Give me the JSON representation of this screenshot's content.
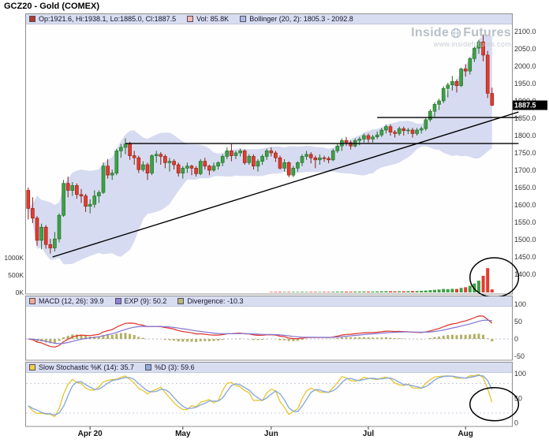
{
  "header": {
    "title": "GCZ20 - Gold (COMEX)"
  },
  "watermark": {
    "brand_left": "Inside",
    "brand_right": "Futures",
    "url": "www.insidefutures.com"
  },
  "legends": {
    "main": [
      {
        "color": "#b03a2e",
        "text": "Op:1921.6, Hi:1938.1, Lo:1885.0, Cl:1887.5"
      },
      {
        "color": "#f5b7ae",
        "text": "Vol: 85.8K"
      },
      {
        "color": "#aeb8e8",
        "text": "Bollinger (20, 2): 1805.3 - 2092.8"
      }
    ],
    "macd": [
      {
        "color": "#f5a898",
        "text": "MACD (12, 26): 39.9"
      },
      {
        "color": "#9080d8",
        "text": "EXP (9): 50.2"
      },
      {
        "color": "#b8b878",
        "text": "Divergence: -10.3"
      }
    ],
    "stoch": [
      {
        "color": "#f0d048",
        "text": "Slow Stochastic %K (14): 35.7"
      },
      {
        "color": "#90acdc",
        "text": "%D (3): 59.6"
      }
    ]
  },
  "colors": {
    "up_candle": "#3fa046",
    "up_border": "#1e6b24",
    "down_candle": "#e23b2e",
    "down_border": "#8e1c12",
    "bollinger_fill": "#cdd2ee",
    "trend_line": "#000000",
    "macd_line": "#e03028",
    "signal_line": "#8274d2",
    "divergence_bar": "#b2b060",
    "stoch_k": "#e8c52f",
    "stoch_d": "#82a5da",
    "legend_bg": "#d9ddf0",
    "panel_bg": "#fefeff",
    "panel_border": "#8f8f8f",
    "price_tag_bg": "#000000",
    "price_tag_text": "#ffffff",
    "annotation": "#000000",
    "axis_text": "#333333"
  },
  "chart_data": {
    "type": "candlestick",
    "symbol": "GCZ20",
    "title": "GCZ20 - Gold (COMEX)",
    "panels": [
      "price+volume",
      "macd",
      "slow-stochastic"
    ],
    "price_axis": {
      "tick_labels": [
        "2100.0",
        "2050.0",
        "2000.0",
        "1950.0",
        "1900.0",
        "1850.0",
        "1800.0",
        "1750.0",
        "1700.0",
        "1650.0",
        "1600.0",
        "1550.0",
        "1500.0",
        "1450.0",
        "1400.0"
      ],
      "last_price": 1887.5,
      "last_price_label": "1887.5"
    },
    "volume_axis": {
      "unit": "K",
      "ticks": [
        {
          "label": "1000K",
          "value": 1000
        },
        {
          "label": "500K",
          "value": 500
        },
        {
          "label": "0K",
          "value": 0
        }
      ]
    },
    "macd_axis": {
      "tick_labels": [
        "100",
        "50",
        "0",
        "-50"
      ]
    },
    "stoch_axis": {
      "tick_labels": [
        "100",
        "50",
        "0"
      ]
    },
    "x_axis": {
      "ticks": [
        {
          "label": "Apr 20",
          "bar": 14
        },
        {
          "label": "May",
          "bar": 35
        },
        {
          "label": "Jun",
          "bar": 55
        },
        {
          "label": "Jul",
          "bar": 77
        },
        {
          "label": "Aug",
          "bar": 99
        }
      ]
    },
    "indicators": {
      "bollinger": {
        "period": 20,
        "stdev": 2,
        "range_label": "1805.3 - 2092.8"
      },
      "macd": {
        "fast": 12,
        "slow": 26,
        "signal": 9,
        "value": 39.9,
        "signal_value": 50.2,
        "divergence": -10.3
      },
      "slow_stochastic": {
        "k_period": 14,
        "d_period": 3,
        "k_value": 35.7,
        "d_value": 59.6
      },
      "current_volume_label": "85.8K"
    },
    "trend_lines": [
      {
        "from_bar": 5.5,
        "from_price": 1450,
        "to_bar": 111,
        "to_price": 1868
      },
      {
        "from_bar": 22,
        "from_price": 1777,
        "to_bar": 111,
        "to_price": 1777
      },
      {
        "from_bar": 79,
        "from_price": 1852,
        "to_bar": 111,
        "to_price": 1852
      }
    ],
    "annotations": [
      {
        "shape": "ellipse",
        "panel": "volume",
        "center_bar": 105.5,
        "rx_bars": 5.5,
        "note": "volume spike circled"
      },
      {
        "shape": "ellipse",
        "panel": "stoch",
        "center_bar": 105.5,
        "center_value": 38,
        "rx_bars": 5.5,
        "note": "stochastic breakdown circled"
      }
    ],
    "ohlcv_format": [
      "open",
      "high",
      "low",
      "close",
      "volume_thousands"
    ],
    "ohlcv": [
      [
        1642,
        1650,
        1558,
        1590,
        3
      ],
      [
        1590,
        1622,
        1548,
        1562,
        3
      ],
      [
        1562,
        1568,
        1482,
        1498,
        4
      ],
      [
        1498,
        1546,
        1472,
        1536,
        4
      ],
      [
        1536,
        1542,
        1474,
        1486,
        4
      ],
      [
        1486,
        1502,
        1460,
        1476,
        5
      ],
      [
        1476,
        1522,
        1466,
        1502,
        4
      ],
      [
        1502,
        1576,
        1492,
        1570,
        4
      ],
      [
        1570,
        1672,
        1566,
        1662,
        5
      ],
      [
        1662,
        1682,
        1622,
        1642,
        4
      ],
      [
        1642,
        1666,
        1626,
        1656,
        3
      ],
      [
        1656,
        1662,
        1618,
        1630,
        3
      ],
      [
        1630,
        1646,
        1606,
        1626,
        3
      ],
      [
        1626,
        1632,
        1580,
        1596,
        3
      ],
      [
        1596,
        1616,
        1576,
        1602,
        3
      ],
      [
        1602,
        1642,
        1592,
        1626,
        3
      ],
      [
        1626,
        1642,
        1606,
        1636,
        3
      ],
      [
        1636,
        1722,
        1632,
        1712,
        4
      ],
      [
        1712,
        1732,
        1676,
        1686,
        4
      ],
      [
        1686,
        1702,
        1672,
        1692,
        3
      ],
      [
        1692,
        1762,
        1686,
        1756,
        4
      ],
      [
        1756,
        1776,
        1736,
        1766,
        4
      ],
      [
        1766,
        1792,
        1746,
        1776,
        4
      ],
      [
        1776,
        1782,
        1730,
        1742,
        4
      ],
      [
        1742,
        1756,
        1716,
        1736,
        3
      ],
      [
        1736,
        1742,
        1692,
        1702,
        4
      ],
      [
        1702,
        1726,
        1696,
        1716,
        3
      ],
      [
        1716,
        1722,
        1672,
        1692,
        4
      ],
      [
        1692,
        1746,
        1686,
        1742,
        4
      ],
      [
        1742,
        1756,
        1722,
        1746,
        3
      ],
      [
        1746,
        1752,
        1716,
        1740,
        3
      ],
      [
        1740,
        1746,
        1706,
        1722,
        3
      ],
      [
        1722,
        1736,
        1696,
        1726,
        3
      ],
      [
        1726,
        1732,
        1702,
        1716,
        3
      ],
      [
        1716,
        1722,
        1682,
        1692,
        4
      ],
      [
        1692,
        1712,
        1676,
        1706,
        3
      ],
      [
        1706,
        1722,
        1692,
        1712,
        3
      ],
      [
        1712,
        1716,
        1686,
        1706,
        3
      ],
      [
        1706,
        1712,
        1682,
        1690,
        3
      ],
      [
        1690,
        1732,
        1686,
        1726,
        4
      ],
      [
        1726,
        1736,
        1702,
        1712,
        3
      ],
      [
        1712,
        1716,
        1686,
        1700,
        3
      ],
      [
        1700,
        1722,
        1696,
        1712,
        3
      ],
      [
        1712,
        1726,
        1702,
        1722,
        3
      ],
      [
        1722,
        1746,
        1712,
        1740,
        4
      ],
      [
        1740,
        1766,
        1732,
        1756,
        4
      ],
      [
        1756,
        1776,
        1726,
        1742,
        4
      ],
      [
        1742,
        1756,
        1732,
        1750,
        3
      ],
      [
        1750,
        1762,
        1740,
        1756,
        3
      ],
      [
        1756,
        1760,
        1716,
        1722,
        4
      ],
      [
        1722,
        1746,
        1716,
        1740,
        3
      ],
      [
        1740,
        1746,
        1702,
        1712,
        4
      ],
      [
        1712,
        1732,
        1696,
        1726,
        4
      ],
      [
        1726,
        1746,
        1716,
        1740,
        4
      ],
      [
        1740,
        1762,
        1730,
        1756,
        4
      ],
      [
        1756,
        1766,
        1740,
        1750,
        14
      ],
      [
        1750,
        1756,
        1724,
        1736,
        15
      ],
      [
        1736,
        1742,
        1702,
        1706,
        18
      ],
      [
        1706,
        1732,
        1696,
        1722,
        15
      ],
      [
        1722,
        1726,
        1680,
        1686,
        17
      ],
      [
        1686,
        1712,
        1680,
        1706,
        15
      ],
      [
        1706,
        1726,
        1696,
        1722,
        16
      ],
      [
        1722,
        1746,
        1712,
        1740,
        18
      ],
      [
        1740,
        1756,
        1730,
        1746,
        17
      ],
      [
        1746,
        1752,
        1720,
        1736,
        16
      ],
      [
        1736,
        1742,
        1706,
        1730,
        15
      ],
      [
        1730,
        1746,
        1716,
        1736,
        16
      ],
      [
        1736,
        1742,
        1724,
        1734,
        15
      ],
      [
        1734,
        1740,
        1720,
        1730,
        17
      ],
      [
        1730,
        1762,
        1726,
        1756,
        20
      ],
      [
        1756,
        1776,
        1750,
        1770,
        22
      ],
      [
        1770,
        1792,
        1756,
        1786,
        24
      ],
      [
        1786,
        1796,
        1770,
        1780,
        22
      ],
      [
        1780,
        1786,
        1760,
        1770,
        21
      ],
      [
        1770,
        1792,
        1766,
        1786,
        24
      ],
      [
        1786,
        1796,
        1772,
        1790,
        26
      ],
      [
        1790,
        1806,
        1780,
        1800,
        28
      ],
      [
        1800,
        1806,
        1780,
        1790,
        26
      ],
      [
        1790,
        1802,
        1780,
        1796,
        27
      ],
      [
        1796,
        1812,
        1790,
        1802,
        30
      ],
      [
        1802,
        1822,
        1796,
        1816,
        34
      ],
      [
        1816,
        1832,
        1806,
        1826,
        36
      ],
      [
        1826,
        1832,
        1800,
        1810,
        33
      ],
      [
        1810,
        1816,
        1794,
        1806,
        31
      ],
      [
        1806,
        1826,
        1800,
        1820,
        35
      ],
      [
        1820,
        1826,
        1800,
        1814,
        34
      ],
      [
        1814,
        1822,
        1804,
        1816,
        36
      ],
      [
        1816,
        1822,
        1794,
        1806,
        38
      ],
      [
        1806,
        1822,
        1800,
        1816,
        42
      ],
      [
        1816,
        1826,
        1806,
        1820,
        48
      ],
      [
        1820,
        1852,
        1814,
        1846,
        55
      ],
      [
        1846,
        1876,
        1840,
        1870,
        65
      ],
      [
        1870,
        1896,
        1854,
        1890,
        75
      ],
      [
        1890,
        1906,
        1874,
        1900,
        85
      ],
      [
        1900,
        1942,
        1894,
        1936,
        100
      ],
      [
        1936,
        1952,
        1910,
        1946,
        95
      ],
      [
        1946,
        1972,
        1930,
        1956,
        105
      ],
      [
        1956,
        1962,
        1924,
        1944,
        100
      ],
      [
        1944,
        1996,
        1940,
        1992,
        130
      ],
      [
        1992,
        2006,
        1970,
        1986,
        150
      ],
      [
        1986,
        2026,
        1976,
        2022,
        190
      ],
      [
        2022,
        2056,
        2012,
        2052,
        260
      ],
      [
        2052,
        2076,
        2036,
        2070,
        340
      ],
      [
        2070,
        2092,
        2014,
        2032,
        480
      ],
      [
        2032,
        2044,
        1908,
        1922,
        700
      ],
      [
        1921.6,
        1938.1,
        1885.0,
        1887.5,
        85.8
      ]
    ]
  }
}
